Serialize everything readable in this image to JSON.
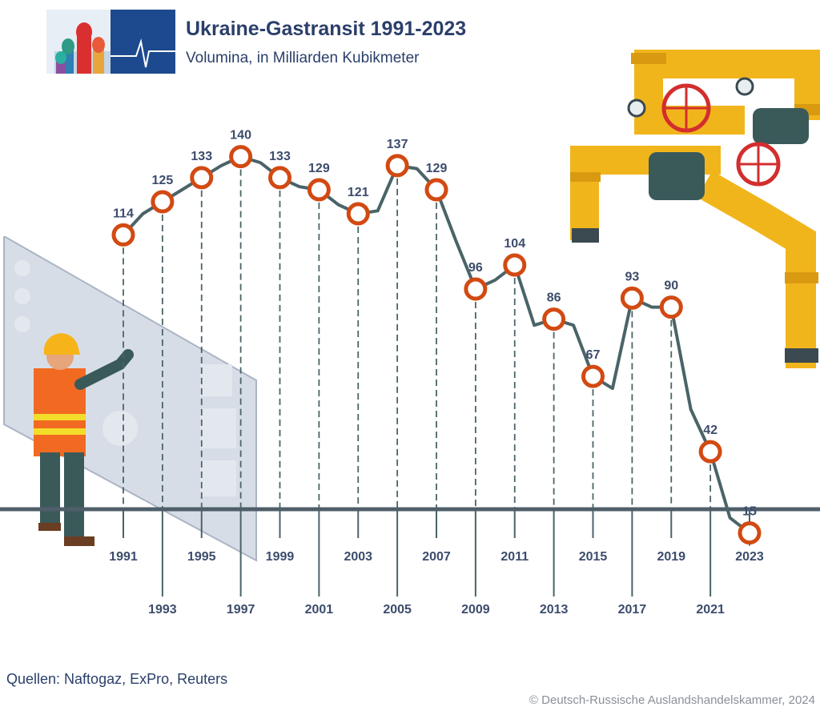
{
  "header": {
    "title": "Ukraine-Gastransit 1991-2023",
    "subtitle": "Volumina, in Milliarden Kubikmeter"
  },
  "footer": {
    "source": "Quellen: Naftogaz, ExPro, Reuters",
    "copyright": "© Deutsch-Russische Auslandshandelskammer, 2024"
  },
  "colors": {
    "line": "#4a6468",
    "marker": "#d24a12",
    "text": "#2a3f6a",
    "axis": "#4f5f6a"
  },
  "chart_data": {
    "type": "line",
    "title": "Ukraine-Gastransit 1991-2023",
    "subtitle": "Volumina, in Milliarden Kubikmeter",
    "xlabel": "",
    "ylabel": "",
    "ylim": [
      0,
      160
    ],
    "grid": false,
    "x": [
      1991,
      1992,
      1993,
      1994,
      1995,
      1996,
      1997,
      1998,
      1999,
      2000,
      2001,
      2002,
      2003,
      2004,
      2005,
      2006,
      2007,
      2008,
      2009,
      2010,
      2011,
      2012,
      2013,
      2014,
      2015,
      2016,
      2017,
      2018,
      2019,
      2020,
      2021,
      2022,
      2023
    ],
    "values": [
      114,
      121,
      125,
      129,
      133,
      137,
      140,
      138,
      133,
      130,
      129,
      124,
      121,
      122,
      137,
      136,
      129,
      112,
      96,
      99,
      104,
      84,
      86,
      84,
      67,
      63,
      93,
      90,
      90,
      56,
      42,
      20,
      15
    ],
    "labeled_years": [
      "1991",
      "1993",
      "1995",
      "1997",
      "1999",
      "2001",
      "2003",
      "2005",
      "2007",
      "2009",
      "2011",
      "2013",
      "2015",
      "2017",
      "2019",
      "2021",
      "2023"
    ],
    "labeled_values": [
      "114",
      "125",
      "133",
      "140",
      "133",
      "129",
      "121",
      "137",
      "129",
      "96",
      "104",
      "86",
      "67",
      "93",
      "90",
      "42",
      "15"
    ]
  }
}
